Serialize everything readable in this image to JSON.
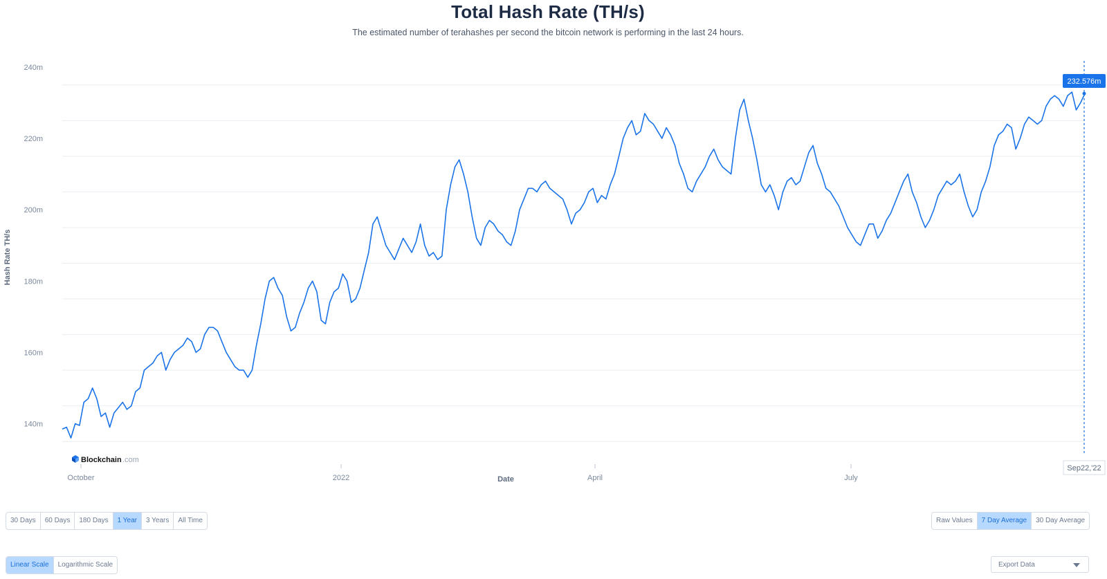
{
  "header": {
    "title": "Total Hash Rate (TH/s)",
    "subtitle": "The estimated number of terahashes per second the bitcoin network is performing in the last 24 hours."
  },
  "brand": {
    "name": "Blockchain",
    "suffix": ".com",
    "icon": "blockchain-logo-icon"
  },
  "colors": {
    "line": "#1a73e8",
    "grid": "#e9edf2",
    "axis_text": "#7a889c",
    "active_bg": "#b7d8ff",
    "tooltip_bg": "#1a73e8"
  },
  "range_buttons": [
    {
      "label": "30 Days",
      "active": false
    },
    {
      "label": "60 Days",
      "active": false
    },
    {
      "label": "180 Days",
      "active": false
    },
    {
      "label": "1 Year",
      "active": true
    },
    {
      "label": "3 Years",
      "active": false
    },
    {
      "label": "All Time",
      "active": false
    }
  ],
  "average_buttons": [
    {
      "label": "Raw Values",
      "active": false
    },
    {
      "label": "7 Day Average",
      "active": true
    },
    {
      "label": "30 Day Average",
      "active": false
    }
  ],
  "scale_buttons": [
    {
      "label": "Linear Scale",
      "active": true
    },
    {
      "label": "Logarithmic Scale",
      "active": false
    }
  ],
  "export": {
    "label": "Export Data",
    "icon": "chevron-down-icon"
  },
  "chart_data": {
    "type": "line",
    "ylabel": "Hash Rate TH/s",
    "xlabel": "Date",
    "ylim": [
      130,
      240
    ],
    "y_ticks": [
      140,
      160,
      180,
      200,
      220,
      240
    ],
    "y_tick_labels": [
      "140m",
      "160m",
      "180m",
      "200m",
      "220m",
      "240m"
    ],
    "x_tick_labels": [
      "October",
      "2022",
      "April",
      "July"
    ],
    "hover": {
      "date_label": "Sep22,'22",
      "value_label": "232.576m",
      "value": 232.576
    },
    "grid": true,
    "series": [
      {
        "values": [
          138.5,
          139,
          136,
          140,
          139.5,
          146,
          147,
          150,
          147,
          142,
          143,
          139,
          143,
          144.5,
          146,
          144,
          145,
          149,
          150,
          155,
          156,
          157,
          159,
          160,
          155,
          158,
          160,
          161,
          162,
          164,
          163,
          160,
          161,
          165,
          167,
          167,
          166,
          163,
          160,
          158,
          156,
          155,
          155,
          153,
          155,
          162,
          168,
          175,
          180,
          181,
          178,
          176,
          170,
          166,
          167,
          171,
          174,
          178,
          180,
          177,
          169,
          168,
          174,
          177,
          178,
          182,
          180,
          174,
          175,
          178,
          183,
          188,
          196,
          198,
          194,
          190,
          188,
          186,
          189,
          192,
          190,
          188,
          191,
          196,
          190,
          187,
          188,
          186,
          187,
          200,
          207,
          212,
          214,
          210,
          205,
          198,
          192,
          190,
          195,
          197,
          196,
          194,
          193,
          191,
          190,
          194,
          200,
          203,
          206,
          206,
          205,
          207,
          208,
          206,
          205,
          204,
          203,
          200,
          196,
          199,
          200,
          202,
          205,
          206,
          202,
          204,
          203,
          207,
          210,
          215,
          220,
          223,
          225,
          221,
          222,
          227,
          225,
          224,
          222,
          220,
          223,
          221,
          218,
          213,
          210,
          206,
          205,
          208,
          210,
          212,
          215,
          217,
          214,
          212,
          211,
          210,
          220,
          228,
          231,
          225,
          220,
          214,
          207,
          205,
          207,
          204,
          200,
          205,
          208,
          209,
          207,
          208,
          212,
          216,
          218,
          213,
          210,
          206,
          205,
          203,
          201,
          198,
          195,
          193,
          191,
          190,
          193,
          196,
          196,
          192,
          194,
          197,
          199,
          202,
          205,
          208,
          210,
          205,
          202,
          198,
          195,
          197,
          200,
          204,
          206,
          208,
          207,
          208,
          210,
          205,
          201,
          198,
          200,
          205,
          208,
          212,
          218,
          221,
          222,
          224,
          223,
          217,
          220,
          224,
          226,
          225,
          224,
          225,
          229,
          231,
          232,
          231,
          229,
          232,
          233,
          228,
          230,
          232.576
        ]
      }
    ]
  }
}
